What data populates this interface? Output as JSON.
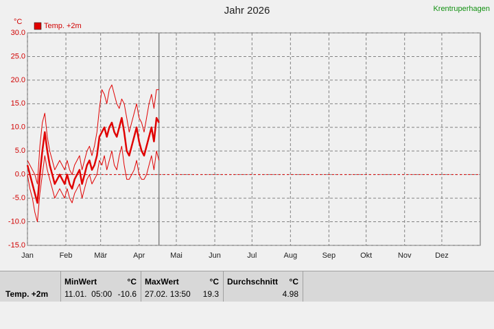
{
  "chart_data": {
    "type": "line",
    "title": "Jahr 2026",
    "annotation": "Krentruperhagen",
    "y_label": "°C",
    "x": [
      0,
      2,
      4,
      6,
      8,
      10,
      12,
      14,
      16,
      18,
      20,
      22,
      24,
      26,
      28,
      30,
      32,
      34,
      36,
      38,
      40,
      42,
      44,
      46,
      48,
      50,
      52,
      54,
      56,
      58,
      60,
      62,
      64,
      66,
      68,
      70,
      72,
      74,
      76,
      78,
      80,
      82,
      84,
      86,
      88,
      90,
      92,
      94,
      96,
      98,
      100,
      102,
      104,
      106
    ],
    "series": [
      {
        "name": "Temp. +2m",
        "color": "#e00000",
        "line_width": 2.5,
        "values": [
          2,
          0,
          -2,
          -4,
          -6,
          0,
          5,
          9,
          5,
          2,
          0,
          -2,
          -1,
          0,
          -1,
          -2,
          0,
          -2,
          -3,
          -1,
          0,
          1,
          -2,
          0,
          2,
          3,
          1,
          2,
          4,
          8,
          9,
          10,
          8,
          10,
          11,
          9,
          8,
          10,
          12,
          9,
          5,
          4,
          6,
          8,
          10,
          7,
          5,
          4,
          6,
          8,
          10,
          7,
          12,
          11
        ]
      },
      {
        "color": "#e00000",
        "line_width": 1,
        "values": [
          3,
          2,
          1,
          0,
          -2,
          6,
          11,
          13,
          8,
          5,
          3,
          1,
          2,
          3,
          2,
          1,
          3,
          1,
          0,
          2,
          3,
          4,
          1,
          3,
          5,
          6,
          4,
          6,
          9,
          14,
          18,
          17,
          15,
          18,
          19,
          17,
          15,
          14,
          16,
          15,
          12,
          9,
          11,
          13,
          15,
          12,
          11,
          9,
          12,
          15,
          17,
          14,
          18,
          18
        ]
      },
      {
        "color": "#e00000",
        "line_width": 1,
        "values": [
          0,
          -3,
          -5,
          -8,
          -10,
          -4,
          0,
          4,
          1,
          -1,
          -3,
          -5,
          -4,
          -3,
          -4,
          -5,
          -3,
          -5,
          -6,
          -4,
          -3,
          -2,
          -5,
          -3,
          -1,
          0,
          -2,
          -1,
          0,
          3,
          2,
          4,
          1,
          3,
          5,
          2,
          1,
          4,
          6,
          2,
          -1,
          -1,
          0,
          1,
          3,
          0,
          -1,
          -1,
          0,
          2,
          4,
          1,
          5,
          3
        ]
      }
    ],
    "xlim": [
      0,
      365
    ],
    "xticks": [
      {
        "value": 0,
        "label": "Jan"
      },
      {
        "value": 31,
        "label": "Feb"
      },
      {
        "value": 59,
        "label": "Mär"
      },
      {
        "value": 90,
        "label": "Apr"
      },
      {
        "value": 120,
        "label": "Mai"
      },
      {
        "value": 151,
        "label": "Jun"
      },
      {
        "value": 181,
        "label": "Jul"
      },
      {
        "value": 212,
        "label": "Aug"
      },
      {
        "value": 243,
        "label": "Sep"
      },
      {
        "value": 273,
        "label": "Okt"
      },
      {
        "value": 304,
        "label": "Nov"
      },
      {
        "value": 334,
        "label": "Dez"
      }
    ],
    "ylim": [
      -15,
      30
    ],
    "yticks": [
      {
        "value": 30,
        "label": "30.0"
      },
      {
        "value": 25,
        "label": "25.0"
      },
      {
        "value": 20,
        "label": "20.0"
      },
      {
        "value": 15,
        "label": "15.0"
      },
      {
        "value": 10,
        "label": "10.0"
      },
      {
        "value": 5,
        "label": "5.0"
      },
      {
        "value": 0,
        "label": "0.0"
      },
      {
        "value": -5,
        "label": "-5.0"
      },
      {
        "value": -10,
        "label": "-10.0"
      },
      {
        "value": -15,
        "label": "-15.0"
      }
    ],
    "grid": true
  },
  "footer": {
    "name": "Temp. +2m",
    "min": {
      "title": "MinWert",
      "unit": "°C",
      "time": "11.01.  05:00",
      "value": "-10.6"
    },
    "max": {
      "title": "MaxWert",
      "unit": "°C",
      "time": "27.02. 13:50",
      "value": "19.3"
    },
    "avg": {
      "title": "Durchschnitt",
      "unit": "°C",
      "value": "4.98"
    }
  }
}
